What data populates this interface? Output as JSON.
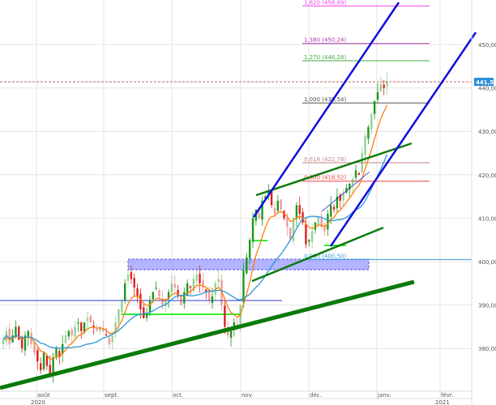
{
  "chart_data": {
    "type": "candlestick",
    "title": "",
    "x_axis": {
      "months": [
        "août",
        "sept.",
        "oct.",
        "nov.",
        "déc.",
        "janv.",
        "févr."
      ],
      "years": [
        "2020",
        "2021"
      ]
    },
    "y_axis": {
      "ticks": [
        "380,00",
        "390,00",
        "400,00",
        "410,00",
        "420,00",
        "430,00",
        "440,00",
        "450,00"
      ],
      "tick_values": [
        380,
        390,
        400,
        410,
        420,
        430,
        440,
        450
      ],
      "range": [
        372,
        460
      ],
      "side": "right"
    },
    "grid": true,
    "current_price": {
      "label": "441,50",
      "value": 441.5,
      "color": "#2a8fd8"
    },
    "closes": [
      382,
      384,
      381,
      383,
      385,
      382,
      380,
      383,
      384,
      381,
      379,
      377,
      375,
      379,
      376,
      374,
      378,
      380,
      378,
      381,
      383,
      384,
      383,
      385,
      386,
      384,
      386,
      387,
      386,
      385,
      384,
      385,
      384,
      383,
      381,
      383,
      386,
      389,
      391,
      395,
      397,
      396,
      394,
      392,
      389,
      387,
      388,
      391,
      393,
      394,
      392,
      390,
      391,
      393,
      395,
      394,
      392,
      390,
      393,
      395,
      394,
      396,
      397,
      395,
      394,
      393,
      391,
      392,
      395,
      396,
      390,
      385,
      383,
      384,
      386,
      385,
      390,
      398,
      401,
      405,
      410,
      412,
      410,
      414,
      415,
      416,
      413,
      411,
      414,
      412,
      410,
      408,
      405,
      410,
      413,
      411,
      409,
      404,
      405,
      407,
      409,
      410,
      408,
      407,
      411,
      413,
      412,
      415,
      414,
      416,
      417,
      418,
      419,
      421,
      420,
      425,
      429,
      431,
      434,
      437,
      439,
      441,
      440,
      441.5
    ],
    "moving_averages": [
      {
        "period": 8,
        "kind": "EMA",
        "color": "#ff7f0e"
      },
      {
        "period": 20,
        "kind": "SMA",
        "color": "#2a9ad8"
      }
    ],
    "fibonacci": [
      {
        "label": "1,620 (458,89)",
        "value": 458.89,
        "color": "#ee44ee"
      },
      {
        "label": "1,380 (450,24)",
        "value": 450.24,
        "color": "#aa33aa"
      },
      {
        "label": "1,270 (446,28)",
        "value": 446.28,
        "color": "#44aa44"
      },
      {
        "label": "1,000 (436,54)",
        "value": 436.54,
        "color": "#555555"
      },
      {
        "label": "0,618 (422,78)",
        "value": 422.78,
        "color": "#c08888"
      },
      {
        "label": "0,500 (418,52)",
        "value": 418.52,
        "color": "#ee4444"
      },
      {
        "label": "0,000 (400,50)",
        "value": 400.5,
        "color": "#3399dd"
      }
    ],
    "colors": {
      "up": "#1a9a1a",
      "down": "#e02020",
      "grid": "#e6e6e6"
    }
  }
}
